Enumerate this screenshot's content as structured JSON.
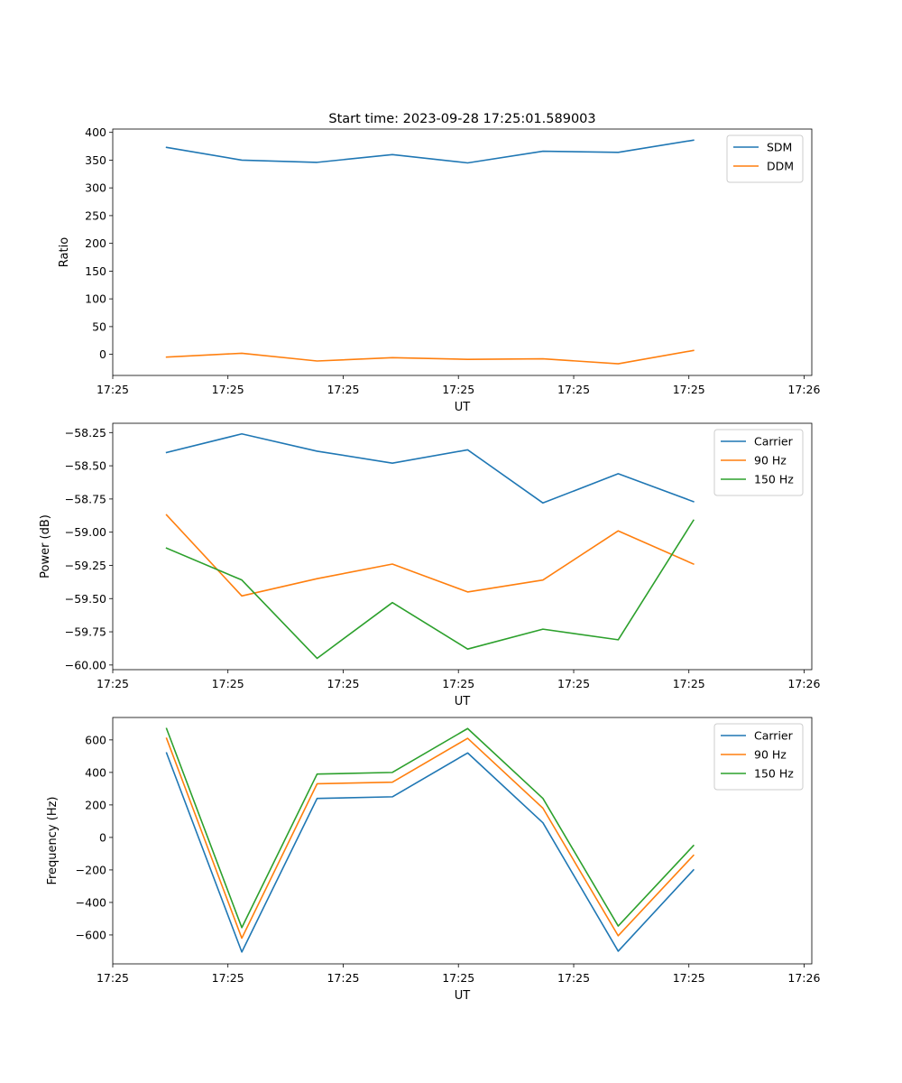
{
  "figure": {
    "title": "Start time: 2023-09-28 17:25:01.589003"
  },
  "chart_data": [
    {
      "type": "line",
      "title": "Start time: 2023-09-28 17:25:01.589003",
      "xlabel": "UT",
      "ylabel": "Ratio",
      "x": [
        0.5,
        1.2,
        1.9,
        2.6,
        3.3,
        4.0,
        4.7,
        5.4
      ],
      "xlim": [
        0,
        6.5
      ],
      "xticks": [
        0,
        1.071,
        2.143,
        3.214,
        4.286,
        5.357,
        6.428
      ],
      "xtick_labels": [
        "17:25",
        "17:25",
        "17:25",
        "17:25",
        "17:25",
        "17:25",
        "17:26"
      ],
      "ylim": [
        -38,
        406
      ],
      "yticks": [
        0,
        50,
        100,
        150,
        200,
        250,
        300,
        350,
        400
      ],
      "ytick_labels": [
        "0",
        "50",
        "100",
        "150",
        "200",
        "250",
        "300",
        "350",
        "400"
      ],
      "grid": false,
      "legend": "top-right",
      "series": [
        {
          "name": "SDM",
          "color": "#1f77b4",
          "values": [
            373,
            350,
            346,
            360,
            345,
            366,
            364,
            386
          ]
        },
        {
          "name": "DDM",
          "color": "#ff7f0e",
          "values": [
            -5,
            2,
            -12,
            -6,
            -9,
            -8,
            -17,
            7
          ]
        }
      ]
    },
    {
      "type": "line",
      "title": "",
      "xlabel": "UT",
      "ylabel": "Power (dB)",
      "x": [
        0.5,
        1.2,
        1.9,
        2.6,
        3.3,
        4.0,
        4.7,
        5.4
      ],
      "xlim": [
        0,
        6.5
      ],
      "xticks": [
        0,
        1.071,
        2.143,
        3.214,
        4.286,
        5.357,
        6.428
      ],
      "xtick_labels": [
        "17:25",
        "17:25",
        "17:25",
        "17:25",
        "17:25",
        "17:25",
        "17:26"
      ],
      "ylim": [
        -60.035,
        -58.18
      ],
      "yticks": [
        -60.0,
        -59.75,
        -59.5,
        -59.25,
        -59.0,
        -58.75,
        -58.5,
        -58.25
      ],
      "ytick_labels": [
        "−60.00",
        "−59.75",
        "−59.50",
        "−59.25",
        "−59.00",
        "−58.75",
        "−58.50",
        "−58.25"
      ],
      "grid": false,
      "legend": "top-right",
      "series": [
        {
          "name": "Carrier",
          "color": "#1f77b4",
          "values": [
            -58.4,
            -58.26,
            -58.39,
            -58.48,
            -58.38,
            -58.78,
            -58.56,
            -58.77
          ]
        },
        {
          "name": "90 Hz",
          "color": "#ff7f0e",
          "values": [
            -58.87,
            -59.48,
            -59.35,
            -59.24,
            -59.45,
            -59.36,
            -58.99,
            -59.24
          ]
        },
        {
          "name": "150 Hz",
          "color": "#2ca02c",
          "values": [
            -59.12,
            -59.36,
            -59.95,
            -59.53,
            -59.88,
            -59.73,
            -59.81,
            -58.91
          ]
        }
      ]
    },
    {
      "type": "line",
      "title": "",
      "xlabel": "UT",
      "ylabel": "Frequency (Hz)",
      "x": [
        0.5,
        1.2,
        1.9,
        2.6,
        3.3,
        4.0,
        4.7,
        5.4
      ],
      "xlim": [
        0,
        6.5
      ],
      "xticks": [
        0,
        1.071,
        2.143,
        3.214,
        4.286,
        5.357,
        6.428
      ],
      "xtick_labels": [
        "17:25",
        "17:25",
        "17:25",
        "17:25",
        "17:25",
        "17:25",
        "17:26"
      ],
      "ylim": [
        -778,
        738
      ],
      "yticks": [
        -600,
        -400,
        -200,
        0,
        200,
        400,
        600
      ],
      "ytick_labels": [
        "−600",
        "−400",
        "−200",
        "0",
        "200",
        "400",
        "600"
      ],
      "grid": false,
      "legend": "top-right",
      "series": [
        {
          "name": "Carrier",
          "color": "#1f77b4",
          "values": [
            520,
            -705,
            240,
            250,
            520,
            90,
            -700,
            -200
          ]
        },
        {
          "name": "90 Hz",
          "color": "#ff7f0e",
          "values": [
            610,
            -620,
            330,
            340,
            610,
            180,
            -605,
            -110
          ]
        },
        {
          "name": "150 Hz",
          "color": "#2ca02c",
          "values": [
            670,
            -555,
            390,
            400,
            670,
            240,
            -545,
            -50
          ]
        }
      ]
    }
  ]
}
